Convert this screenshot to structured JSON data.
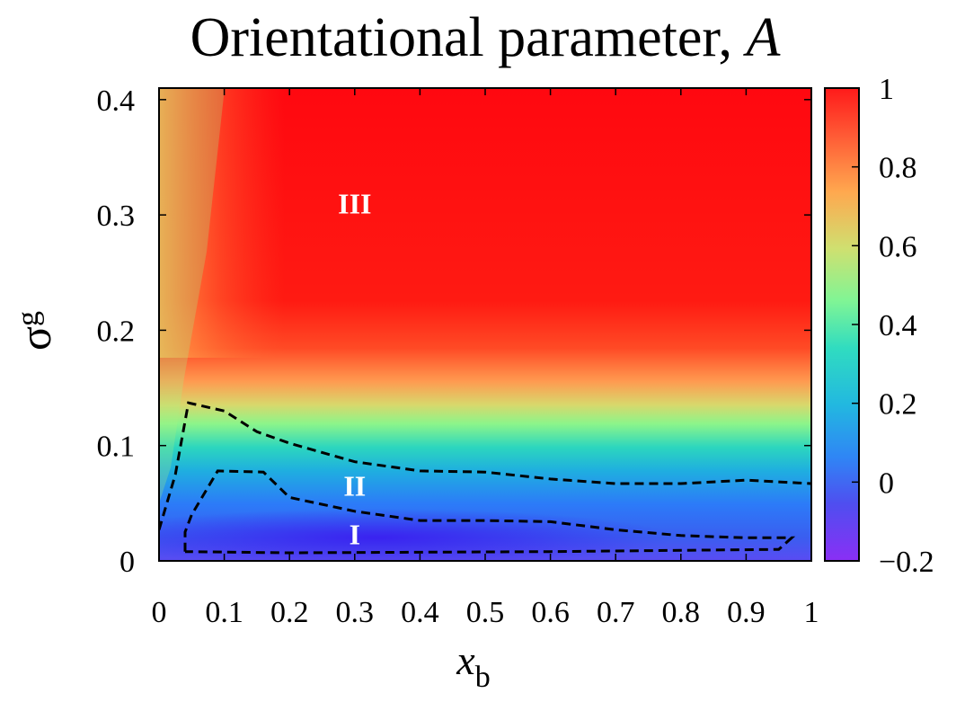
{
  "chart_data": {
    "type": "heatmap",
    "title": "Orientational parameter, ",
    "title_symbol": "A",
    "xlabel": "x",
    "xlabel_sub": "b",
    "ylabel": "σ",
    "ylabel_sub": "g",
    "x_ticks": [
      "0",
      "0.1",
      "0.2",
      "0.3",
      "0.4",
      "0.5",
      "0.6",
      "0.7",
      "0.8",
      "0.9",
      "1"
    ],
    "y_ticks": [
      "0",
      "0.1",
      "0.2",
      "0.3",
      "0.4"
    ],
    "xlim": [
      0,
      1
    ],
    "ylim": [
      0,
      0.41
    ],
    "colorbar": {
      "range": [
        -0.2,
        1
      ],
      "ticks": [
        "1",
        "0.8",
        "0.6",
        "0.4",
        "0.2",
        "0",
        "−0.2"
      ],
      "tick_values": [
        1,
        0.8,
        0.6,
        0.4,
        0.2,
        0,
        -0.2
      ],
      "colormap": [
        "#7f00ff",
        "#2c7bf8",
        "#28d0c9",
        "#7cf58b",
        "#d4d96a",
        "#ff8a45",
        "#ff0000"
      ]
    },
    "regions": [
      {
        "label": "I",
        "x": 0.3,
        "y": 0.023
      },
      {
        "label": "II",
        "x": 0.3,
        "y": 0.065
      },
      {
        "label": "III",
        "x": 0.3,
        "y": 0.31
      }
    ],
    "boundaries": [
      {
        "name": "I/II",
        "points": [
          [
            0.04,
            0.008
          ],
          [
            0.04,
            0.025
          ],
          [
            0.05,
            0.04
          ],
          [
            0.09,
            0.078
          ],
          [
            0.16,
            0.077
          ],
          [
            0.2,
            0.055
          ],
          [
            0.3,
            0.043
          ],
          [
            0.4,
            0.035
          ],
          [
            0.5,
            0.035
          ],
          [
            0.6,
            0.034
          ],
          [
            0.7,
            0.027
          ],
          [
            0.8,
            0.022
          ],
          [
            0.9,
            0.02
          ],
          [
            0.97,
            0.02
          ],
          [
            0.95,
            0.01
          ],
          [
            0.6,
            0.008
          ],
          [
            0.2,
            0.007
          ],
          [
            0.04,
            0.008
          ]
        ]
      },
      {
        "name": "II/III",
        "points": [
          [
            0,
            0.027
          ],
          [
            0.025,
            0.075
          ],
          [
            0.045,
            0.137
          ],
          [
            0.1,
            0.13
          ],
          [
            0.15,
            0.112
          ],
          [
            0.2,
            0.102
          ],
          [
            0.3,
            0.086
          ],
          [
            0.4,
            0.078
          ],
          [
            0.5,
            0.077
          ],
          [
            0.6,
            0.071
          ],
          [
            0.7,
            0.067
          ],
          [
            0.8,
            0.067
          ],
          [
            0.9,
            0.07
          ],
          [
            1.0,
            0.067
          ]
        ]
      }
    ],
    "grid": false
  }
}
